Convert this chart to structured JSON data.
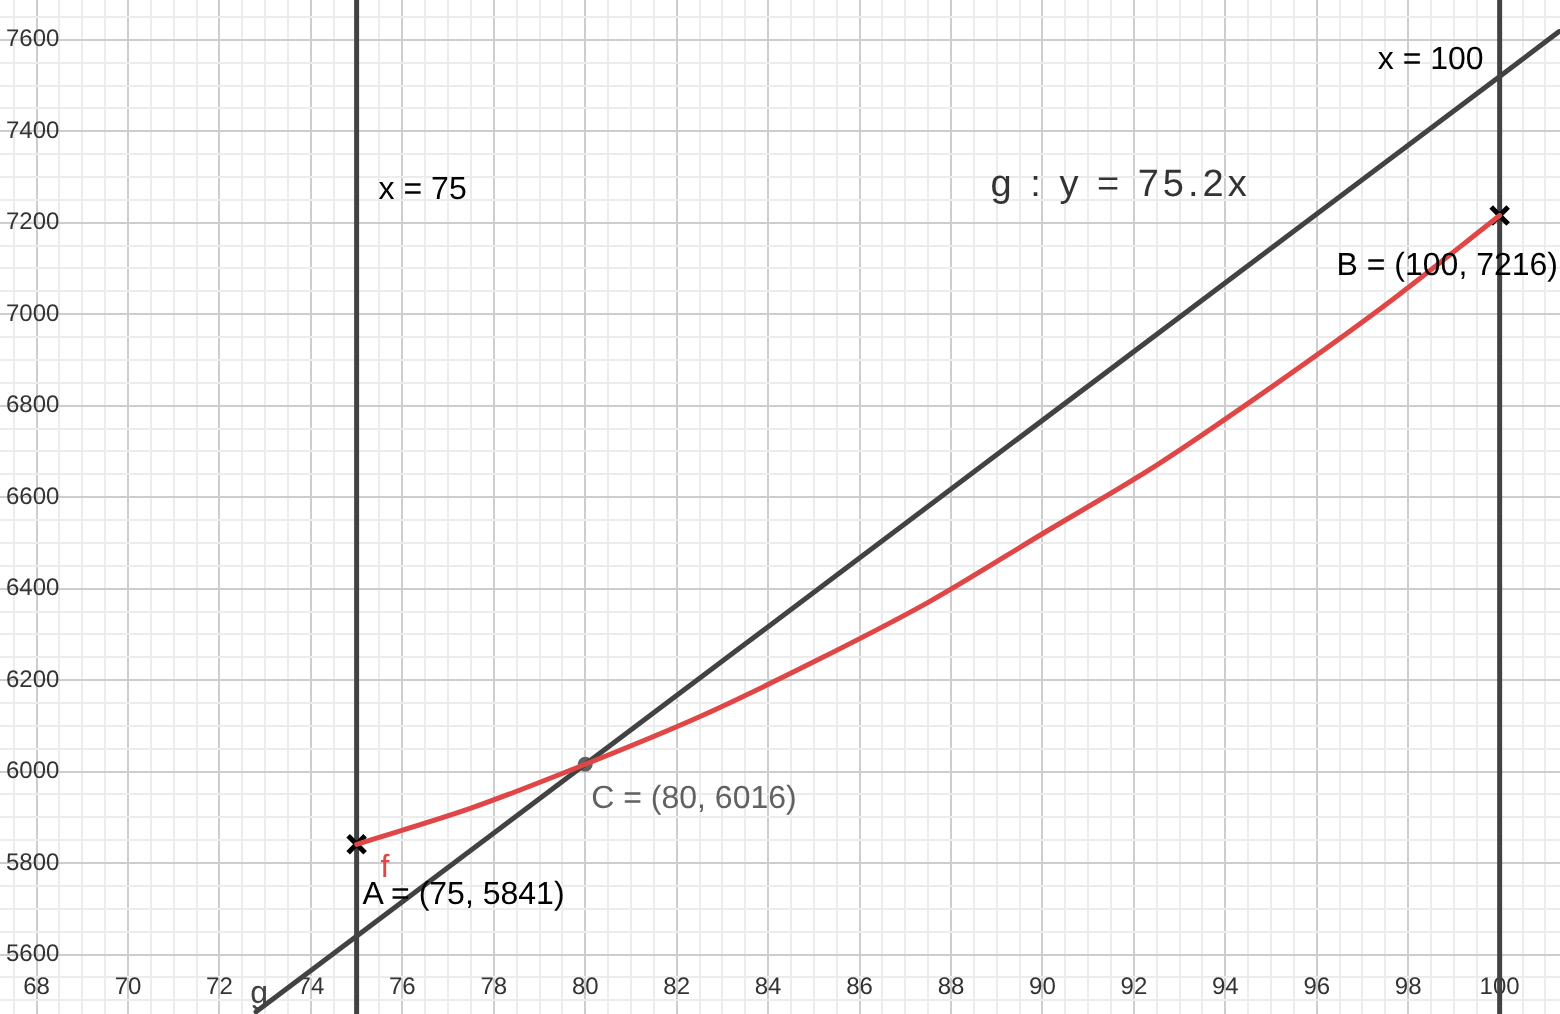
{
  "chart_data": {
    "type": "line",
    "xlim": [
      67.2,
      101.32
    ],
    "ylim": [
      5470,
      7687
    ],
    "xticks": [
      {
        "value": 67.5,
        "label": null
      },
      68,
      {
        "value": 68.5,
        "label": null
      },
      {
        "value": 69,
        "label": null
      },
      {
        "value": 69.5,
        "label": null
      },
      70,
      {
        "value": 70.5,
        "label": null
      },
      {
        "value": 71,
        "label": null
      },
      {
        "value": 71.5,
        "label": null
      },
      72,
      {
        "value": 72.5,
        "label": null
      },
      {
        "value": 73,
        "label": null
      },
      {
        "value": 73.5,
        "label": null
      },
      74,
      {
        "value": 74.5,
        "label": null
      },
      {
        "value": 75.5,
        "label": null
      },
      76,
      {
        "value": 76.5,
        "label": null
      },
      {
        "value": 77,
        "label": null
      },
      {
        "value": 77.5,
        "label": null
      },
      78,
      {
        "value": 78.5,
        "label": null
      },
      {
        "value": 79,
        "label": null
      },
      {
        "value": 79.5,
        "label": null
      },
      80,
      {
        "value": 80.5,
        "label": null
      },
      {
        "value": 81,
        "label": null
      },
      {
        "value": 81.5,
        "label": null
      },
      82,
      {
        "value": 82.5,
        "label": null
      },
      {
        "value": 83,
        "label": null
      },
      {
        "value": 83.5,
        "label": null
      },
      84,
      {
        "value": 84.5,
        "label": null
      },
      {
        "value": 85,
        "label": null
      },
      {
        "value": 85.5,
        "label": null
      },
      86,
      {
        "value": 86.5,
        "label": null
      },
      {
        "value": 87,
        "label": null
      },
      {
        "value": 87.5,
        "label": null
      },
      88,
      {
        "value": 88.5,
        "label": null
      },
      {
        "value": 89,
        "label": null
      },
      {
        "value": 89.5,
        "label": null
      },
      90,
      {
        "value": 90.5,
        "label": null
      },
      {
        "value": 91,
        "label": null
      },
      {
        "value": 91.5,
        "label": null
      },
      92,
      {
        "value": 92.5,
        "label": null
      },
      {
        "value": 93,
        "label": null
      },
      {
        "value": 93.5,
        "label": null
      },
      94,
      {
        "value": 94.5,
        "label": null
      },
      {
        "value": 95,
        "label": null
      },
      {
        "value": 95.5,
        "label": null
      },
      96,
      {
        "value": 96.5,
        "label": null
      },
      {
        "value": 97,
        "label": null
      },
      {
        "value": 97.5,
        "label": null
      },
      98,
      {
        "value": 98.5,
        "label": null
      },
      {
        "value": 99,
        "label": null
      },
      {
        "value": 99.5,
        "label": null
      },
      100,
      {
        "value": 100.5,
        "label": null
      },
      {
        "value": 101,
        "label": null
      }
    ],
    "yticks": [
      {
        "value": 5500,
        "label": null
      },
      {
        "value": 5550,
        "label": null
      },
      5600,
      {
        "value": 5650,
        "label": null
      },
      {
        "value": 5700,
        "label": null
      },
      {
        "value": 5750,
        "label": null
      },
      5800,
      {
        "value": 5850,
        "label": null
      },
      {
        "value": 5900,
        "label": null
      },
      {
        "value": 5950,
        "label": null
      },
      6000,
      {
        "value": 6050,
        "label": null
      },
      {
        "value": 6100,
        "label": null
      },
      {
        "value": 6150,
        "label": null
      },
      6200,
      {
        "value": 6250,
        "label": null
      },
      {
        "value": 6300,
        "label": null
      },
      {
        "value": 6350,
        "label": null
      },
      6400,
      {
        "value": 6450,
        "label": null
      },
      {
        "value": 6500,
        "label": null
      },
      {
        "value": 6550,
        "label": null
      },
      6600,
      {
        "value": 6650,
        "label": null
      },
      {
        "value": 6700,
        "label": null
      },
      {
        "value": 6750,
        "label": null
      },
      6800,
      {
        "value": 6850,
        "label": null
      },
      {
        "value": 6900,
        "label": null
      },
      {
        "value": 6950,
        "label": null
      },
      7000,
      {
        "value": 7050,
        "label": null
      },
      {
        "value": 7100,
        "label": null
      },
      {
        "value": 7150,
        "label": null
      },
      7200,
      {
        "value": 7250,
        "label": null
      },
      {
        "value": 7300,
        "label": null
      },
      {
        "value": 7350,
        "label": null
      },
      7400,
      {
        "value": 7450,
        "label": null
      },
      {
        "value": 7500,
        "label": null
      },
      {
        "value": 7550,
        "label": null
      },
      7600,
      {
        "value": 7650,
        "label": null
      }
    ],
    "grid": true,
    "series": [
      {
        "name": "f",
        "type": "line",
        "color": "#e04646",
        "x": [
          75,
          77.5,
          80,
          82.5,
          85,
          87.5,
          90,
          92.5,
          95,
          97.5,
          100
        ],
        "values": [
          5841,
          5920,
          6016,
          6120,
          6240,
          6370,
          6520,
          6670,
          6840,
          7020,
          7216
        ]
      },
      {
        "name": "g",
        "type": "line",
        "color": "#424242",
        "x": [
          72.8,
          80,
          100,
          101.3
        ],
        "values": [
          5475,
          6016,
          7520,
          7618
        ]
      },
      {
        "type": "scatter",
        "color": "#000000",
        "marker": "cross",
        "x": [
          75,
          100
        ],
        "values": [
          5841,
          7216
        ]
      },
      {
        "type": "scatter",
        "color": "#616161",
        "marker": "circle",
        "x": [
          80
        ],
        "values": [
          6016
        ]
      }
    ],
    "ref_lines": [
      {
        "axis": "x",
        "value": 75,
        "label": "x = 75",
        "color": "#424242"
      },
      {
        "axis": "x",
        "value": 100,
        "label": "x = 100",
        "color": "#424242"
      }
    ],
    "annotations": [
      "g : y = 75.2x",
      {
        "text": "A = (75, 5841)",
        "x": 75,
        "y": 5841
      },
      {
        "text": "B = (100, 7216)",
        "x": 100,
        "y": 7216
      },
      {
        "text": "C = (80, 6016)",
        "x": 80,
        "y": 6016
      }
    ]
  }
}
